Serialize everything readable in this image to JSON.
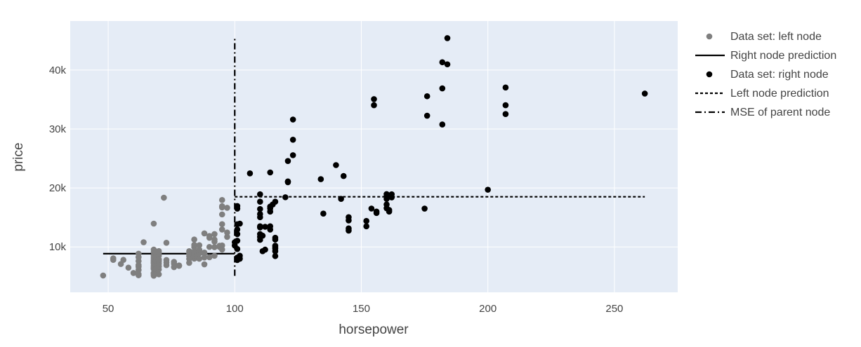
{
  "chart_data": {
    "type": "scatter",
    "xlabel": "horsepower",
    "ylabel": "price",
    "xlim": [
      35,
      275
    ],
    "ylim": [
      2300,
      48300
    ],
    "x_ticks": [
      50,
      100,
      150,
      200,
      250
    ],
    "x_tick_labels": [
      "50",
      "100",
      "150",
      "200",
      "250"
    ],
    "y_ticks": [
      10000,
      20000,
      30000,
      40000
    ],
    "y_tick_labels": [
      "10k",
      "20k",
      "30k",
      "40k"
    ],
    "grid": true,
    "legend_position": "right",
    "colors": {
      "plot_background": "#e5ecf6",
      "grid": "#ffffff",
      "left_points": "#7f7f7f",
      "right_points": "#000000",
      "lines": "#000000"
    },
    "series": [
      {
        "name": "Data set: left node",
        "mode": "markers",
        "points": [
          [
            48,
            5151
          ],
          [
            52,
            7799
          ],
          [
            52,
            8058
          ],
          [
            55,
            7099
          ],
          [
            56,
            7799
          ],
          [
            58,
            6479
          ],
          [
            60,
            5572
          ],
          [
            62,
            5389
          ],
          [
            62,
            5195
          ],
          [
            62,
            6095
          ],
          [
            62,
            6649
          ],
          [
            62,
            6938
          ],
          [
            62,
            7609
          ],
          [
            62,
            8249
          ],
          [
            62,
            8845
          ],
          [
            64,
            10795
          ],
          [
            68,
            5118
          ],
          [
            68,
            5348
          ],
          [
            68,
            5499
          ],
          [
            68,
            5572
          ],
          [
            68,
            6229
          ],
          [
            68,
            6338
          ],
          [
            68,
            6488
          ],
          [
            68,
            6669
          ],
          [
            68,
            6849
          ],
          [
            68,
            7129
          ],
          [
            68,
            7295
          ],
          [
            68,
            7395
          ],
          [
            68,
            7609
          ],
          [
            68,
            7689
          ],
          [
            68,
            7957
          ],
          [
            68,
            8238
          ],
          [
            68,
            8558
          ],
          [
            68,
            9095
          ],
          [
            68,
            9549
          ],
          [
            68,
            13950
          ],
          [
            69,
            5499
          ],
          [
            69,
            6295
          ],
          [
            69,
            7053
          ],
          [
            69,
            7603
          ],
          [
            69,
            8358
          ],
          [
            70,
            5348
          ],
          [
            70,
            6189
          ],
          [
            70,
            6692
          ],
          [
            70,
            7126
          ],
          [
            70,
            7499
          ],
          [
            70,
            7738
          ],
          [
            70,
            7898
          ],
          [
            70,
            8495
          ],
          [
            70,
            8948
          ],
          [
            70,
            9298
          ],
          [
            72,
            18344
          ],
          [
            73,
            6918
          ],
          [
            73,
            7349
          ],
          [
            73,
            7775
          ],
          [
            73,
            10698
          ],
          [
            76,
            6575
          ],
          [
            76,
            7150
          ],
          [
            76,
            7463
          ],
          [
            78,
            6785
          ],
          [
            78,
            6855
          ],
          [
            82,
            7299
          ],
          [
            82,
            7975
          ],
          [
            82,
            8449
          ],
          [
            82,
            8921
          ],
          [
            82,
            9279
          ],
          [
            84,
            8013
          ],
          [
            84,
            8499
          ],
          [
            84,
            9233
          ],
          [
            84,
            9989
          ],
          [
            84,
            10345
          ],
          [
            84,
            11259
          ],
          [
            85,
            8195
          ],
          [
            85,
            8495
          ],
          [
            85,
            8778
          ],
          [
            86,
            7995
          ],
          [
            86,
            8921
          ],
          [
            86,
            9495
          ],
          [
            86,
            10295
          ],
          [
            88,
            8199
          ],
          [
            88,
            8845
          ],
          [
            88,
            9039
          ],
          [
            88,
            12290
          ],
          [
            88,
            7050
          ],
          [
            90,
            8249
          ],
          [
            90,
            9995
          ],
          [
            90,
            11549
          ],
          [
            90,
            11850
          ],
          [
            92,
            8495
          ],
          [
            92,
            9960
          ],
          [
            92,
            10898
          ],
          [
            92,
            11245
          ],
          [
            92,
            12170
          ],
          [
            94,
            9980
          ],
          [
            94,
            10199
          ],
          [
            95,
            9549
          ],
          [
            95,
            10245
          ],
          [
            95,
            12945
          ],
          [
            95,
            13860
          ],
          [
            95,
            15510
          ],
          [
            95,
            16695
          ],
          [
            95,
            16900
          ],
          [
            95,
            17950
          ],
          [
            97,
            11694
          ],
          [
            97,
            12440
          ],
          [
            97,
            16630
          ]
        ]
      },
      {
        "name": "Right node prediction",
        "mode": "lines",
        "dash": "solid",
        "x": [
          48,
          100
        ],
        "y": [
          8850,
          8850
        ]
      },
      {
        "name": "Data set: right node",
        "mode": "markers",
        "points": [
          [
            100,
            10245
          ],
          [
            100,
            10795
          ],
          [
            101,
            7775
          ],
          [
            101,
            8195
          ],
          [
            101,
            9645
          ],
          [
            101,
            11048
          ],
          [
            101,
            12170
          ],
          [
            101,
            12964
          ],
          [
            101,
            13845
          ],
          [
            101,
            16500
          ],
          [
            101,
            16925
          ],
          [
            102,
            7999
          ],
          [
            102,
            8499
          ],
          [
            102,
            13950
          ],
          [
            106,
            22470
          ],
          [
            110,
            11199
          ],
          [
            110,
            11694
          ],
          [
            110,
            12170
          ],
          [
            110,
            13295
          ],
          [
            110,
            13499
          ],
          [
            110,
            15040
          ],
          [
            110,
            15580
          ],
          [
            110,
            16430
          ],
          [
            110,
            17669
          ],
          [
            110,
            18920
          ],
          [
            111,
            9279
          ],
          [
            111,
            11900
          ],
          [
            112,
            9538
          ],
          [
            112,
            13415
          ],
          [
            114,
            12940
          ],
          [
            114,
            13499
          ],
          [
            114,
            15985
          ],
          [
            114,
            16515
          ],
          [
            114,
            16845
          ],
          [
            114,
            22625
          ],
          [
            115,
            17199
          ],
          [
            116,
            8449
          ],
          [
            116,
            9258
          ],
          [
            116,
            9720
          ],
          [
            116,
            9989
          ],
          [
            116,
            10198
          ],
          [
            116,
            11248
          ],
          [
            116,
            11549
          ],
          [
            116,
            17669
          ],
          [
            120,
            18420
          ],
          [
            121,
            20970
          ],
          [
            121,
            21105
          ],
          [
            121,
            24565
          ],
          [
            123,
            25552
          ],
          [
            123,
            28176
          ],
          [
            123,
            31600
          ],
          [
            134,
            21485
          ],
          [
            135,
            15645
          ],
          [
            140,
            23875
          ],
          [
            142,
            18150
          ],
          [
            143,
            22018
          ],
          [
            145,
            12764
          ],
          [
            145,
            13145
          ],
          [
            145,
            14489
          ],
          [
            145,
            15040
          ],
          [
            152,
            13499
          ],
          [
            152,
            14399
          ],
          [
            154,
            16503
          ],
          [
            155,
            34028
          ],
          [
            155,
            35056
          ],
          [
            156,
            15750
          ],
          [
            156,
            15998
          ],
          [
            160,
            16558
          ],
          [
            160,
            17199
          ],
          [
            160,
            18150
          ],
          [
            160,
            18620
          ],
          [
            160,
            18950
          ],
          [
            161,
            16265
          ],
          [
            161,
            15985
          ],
          [
            162,
            18399
          ],
          [
            162,
            18920
          ],
          [
            175,
            16500
          ],
          [
            176,
            32250
          ],
          [
            176,
            35550
          ],
          [
            182,
            30760
          ],
          [
            182,
            36880
          ],
          [
            182,
            41315
          ],
          [
            184,
            40960
          ],
          [
            184,
            45400
          ],
          [
            200,
            19699
          ],
          [
            207,
            32528
          ],
          [
            207,
            34028
          ],
          [
            207,
            37028
          ],
          [
            262,
            36000
          ]
        ]
      },
      {
        "name": "Left node prediction",
        "mode": "lines",
        "dash": "dot",
        "x": [
          100,
          262
        ],
        "y": [
          18500,
          18500
        ]
      },
      {
        "name": "MSE of parent node",
        "mode": "lines",
        "dash": "dashdot",
        "x": [
          100,
          100
        ],
        "y": [
          5100,
          45400
        ]
      }
    ]
  }
}
